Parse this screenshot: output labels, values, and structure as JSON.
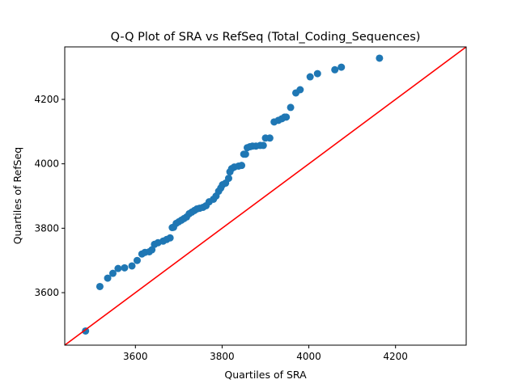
{
  "chart_data": {
    "type": "scatter",
    "title": "Q-Q Plot of SRA vs RefSeq (Total_Coding_Sequences)",
    "xlabel": "Quartiles of SRA",
    "ylabel": "Quartiles of RefSeq",
    "xlim": [
      3437,
      4363
    ],
    "ylim": [
      3437,
      4363
    ],
    "xticks": [
      3600,
      3800,
      4000,
      4200
    ],
    "yticks": [
      3600,
      3800,
      4000,
      4200
    ],
    "grid": false,
    "point_color": "#1f77b4",
    "reference_line": {
      "type": "y=x",
      "color": "#ff0000"
    },
    "series": [
      {
        "x": [
          3485,
          3518,
          3536,
          3548,
          3560,
          3575,
          3592,
          3604,
          3615,
          3622,
          3632,
          3638,
          3644,
          3652,
          3664,
          3672,
          3680,
          3685,
          3688,
          3694,
          3700,
          3706,
          3712,
          3718,
          3724,
          3730,
          3736,
          3742,
          3748,
          3756,
          3763,
          3770,
          3780,
          3786,
          3792,
          3797,
          3801,
          3808,
          3815,
          3818,
          3822,
          3828,
          3838,
          3845,
          3850,
          3854,
          3858,
          3864,
          3870,
          3878,
          3888,
          3895,
          3900,
          3910,
          3920,
          3930,
          3938,
          3944,
          3948,
          3958,
          3970,
          3980,
          4003,
          4020,
          4060,
          4075,
          4163
        ],
        "y": [
          3481,
          3619,
          3645,
          3660,
          3675,
          3677,
          3683,
          3700,
          3720,
          3725,
          3727,
          3733,
          3750,
          3755,
          3760,
          3765,
          3770,
          3802,
          3803,
          3815,
          3820,
          3825,
          3830,
          3835,
          3845,
          3850,
          3855,
          3860,
          3862,
          3865,
          3870,
          3882,
          3890,
          3900,
          3915,
          3925,
          3935,
          3940,
          3955,
          3975,
          3985,
          3990,
          3993,
          3995,
          4030,
          4030,
          4050,
          4053,
          4055,
          4055,
          4057,
          4057,
          4080,
          4080,
          4130,
          4135,
          4140,
          4145,
          4145,
          4175,
          4220,
          4230,
          4270,
          4280,
          4292,
          4300,
          4328
        ]
      }
    ]
  }
}
